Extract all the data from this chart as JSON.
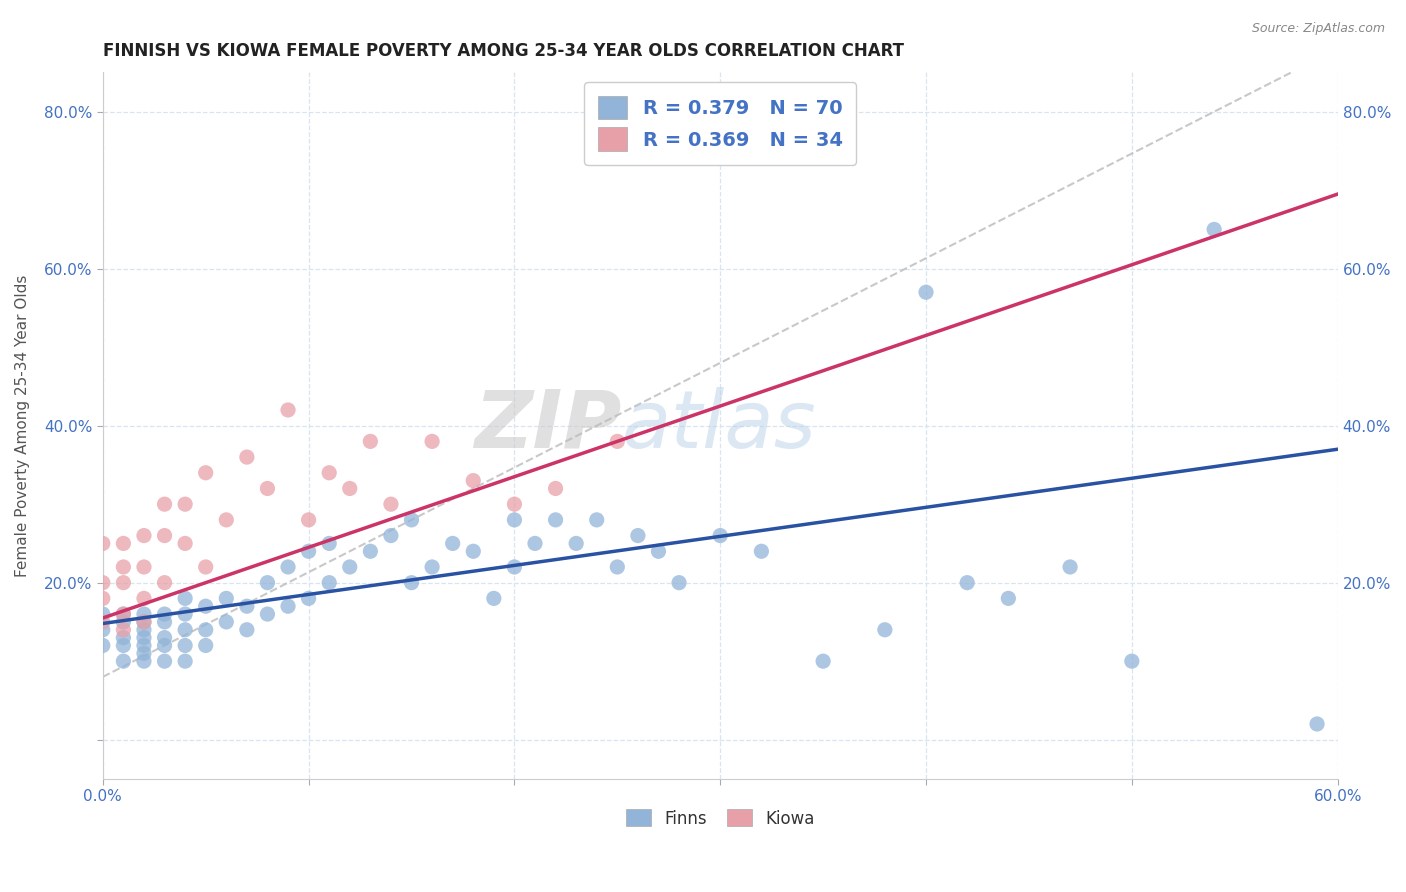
{
  "title": "FINNISH VS KIOWA FEMALE POVERTY AMONG 25-34 YEAR OLDS CORRELATION CHART",
  "source": "Source: ZipAtlas.com",
  "ylabel": "Female Poverty Among 25-34 Year Olds",
  "xlim": [
    0.0,
    0.6
  ],
  "ylim": [
    -0.05,
    0.85
  ],
  "x_ticks": [
    0.0,
    0.1,
    0.2,
    0.3,
    0.4,
    0.5,
    0.6
  ],
  "x_tick_labels": [
    "0.0%",
    "",
    "",
    "",
    "",
    "",
    "60.0%"
  ],
  "y_ticks": [
    0.0,
    0.2,
    0.4,
    0.6,
    0.8
  ],
  "y_tick_labels": [
    "",
    "20.0%",
    "40.0%",
    "60.0%",
    "80.0%"
  ],
  "legend1_R": "0.379",
  "legend1_N": "70",
  "legend2_R": "0.369",
  "legend2_N": "34",
  "finn_color": "#92b4d8",
  "kiowa_color": "#e8a0a8",
  "finn_line_color": "#2952a3",
  "kiowa_line_color": "#cc3366",
  "legend_text_color": "#4472c4",
  "watermark_zip": "ZIP",
  "watermark_atlas": "atlas",
  "finns_scatter_x": [
    0.0,
    0.0,
    0.0,
    0.01,
    0.01,
    0.01,
    0.01,
    0.01,
    0.02,
    0.02,
    0.02,
    0.02,
    0.02,
    0.02,
    0.02,
    0.03,
    0.03,
    0.03,
    0.03,
    0.03,
    0.04,
    0.04,
    0.04,
    0.04,
    0.04,
    0.05,
    0.05,
    0.05,
    0.06,
    0.06,
    0.07,
    0.07,
    0.08,
    0.08,
    0.09,
    0.09,
    0.1,
    0.1,
    0.11,
    0.11,
    0.12,
    0.13,
    0.14,
    0.15,
    0.15,
    0.16,
    0.17,
    0.18,
    0.19,
    0.2,
    0.2,
    0.21,
    0.22,
    0.23,
    0.24,
    0.25,
    0.26,
    0.27,
    0.28,
    0.3,
    0.32,
    0.35,
    0.38,
    0.4,
    0.42,
    0.44,
    0.47,
    0.5,
    0.54,
    0.59
  ],
  "finns_scatter_y": [
    0.12,
    0.14,
    0.16,
    0.1,
    0.12,
    0.13,
    0.15,
    0.16,
    0.1,
    0.11,
    0.12,
    0.13,
    0.14,
    0.15,
    0.16,
    0.1,
    0.12,
    0.13,
    0.15,
    0.16,
    0.1,
    0.12,
    0.14,
    0.16,
    0.18,
    0.12,
    0.14,
    0.17,
    0.15,
    0.18,
    0.14,
    0.17,
    0.16,
    0.2,
    0.17,
    0.22,
    0.18,
    0.24,
    0.2,
    0.25,
    0.22,
    0.24,
    0.26,
    0.2,
    0.28,
    0.22,
    0.25,
    0.24,
    0.18,
    0.22,
    0.28,
    0.25,
    0.28,
    0.25,
    0.28,
    0.22,
    0.26,
    0.24,
    0.2,
    0.26,
    0.24,
    0.1,
    0.14,
    0.57,
    0.2,
    0.18,
    0.22,
    0.1,
    0.65,
    0.02
  ],
  "kiowa_scatter_x": [
    0.0,
    0.0,
    0.0,
    0.0,
    0.01,
    0.01,
    0.01,
    0.01,
    0.01,
    0.02,
    0.02,
    0.02,
    0.02,
    0.03,
    0.03,
    0.03,
    0.04,
    0.04,
    0.05,
    0.05,
    0.06,
    0.07,
    0.08,
    0.09,
    0.1,
    0.11,
    0.12,
    0.13,
    0.14,
    0.16,
    0.18,
    0.2,
    0.22,
    0.25
  ],
  "kiowa_scatter_y": [
    0.15,
    0.18,
    0.2,
    0.25,
    0.14,
    0.16,
    0.2,
    0.22,
    0.25,
    0.15,
    0.18,
    0.22,
    0.26,
    0.2,
    0.26,
    0.3,
    0.25,
    0.3,
    0.22,
    0.34,
    0.28,
    0.36,
    0.32,
    0.42,
    0.28,
    0.34,
    0.32,
    0.38,
    0.3,
    0.38,
    0.33,
    0.3,
    0.32,
    0.38
  ],
  "background_color": "#ffffff",
  "grid_color": "#d8e4f0"
}
